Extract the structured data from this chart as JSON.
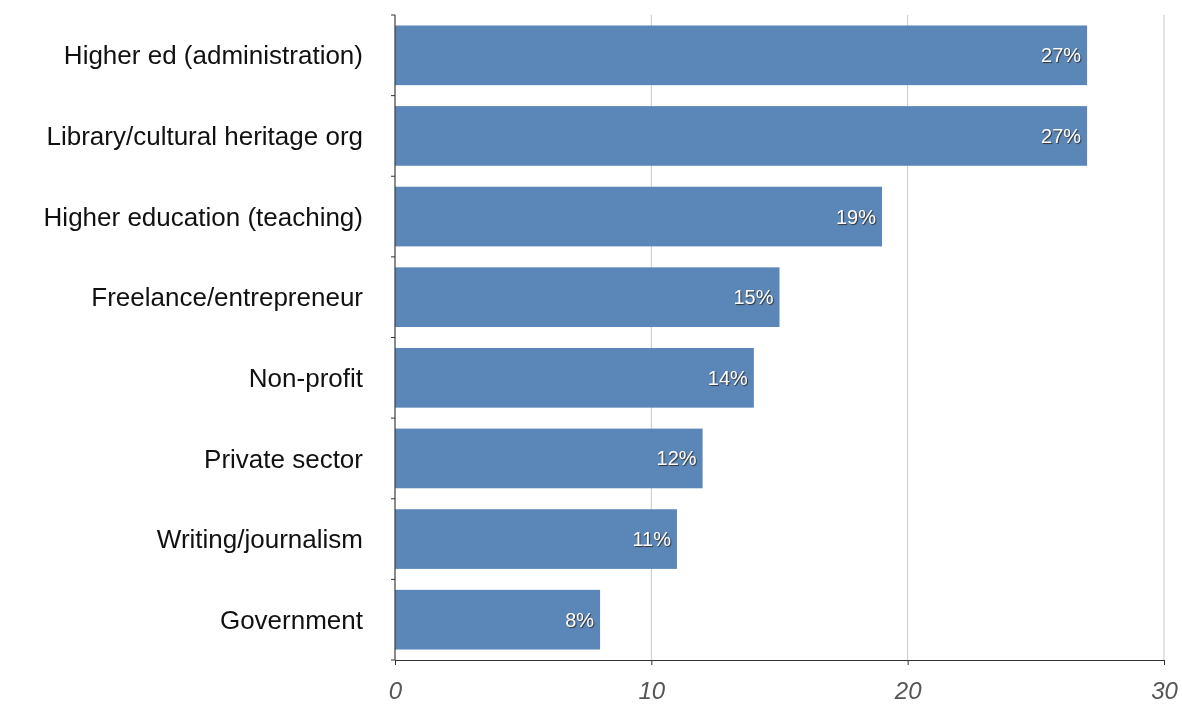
{
  "chart_data": {
    "type": "bar",
    "orientation": "horizontal",
    "categories": [
      "Higher ed (administration)",
      "Library/cultural heritage org",
      "Higher education (teaching)",
      "Freelance/entrepreneur",
      "Non-profit",
      "Private sector",
      "Writing/journalism",
      "Government"
    ],
    "values": [
      27,
      27,
      19,
      15,
      14,
      12,
      11,
      8
    ],
    "value_labels": [
      "27%",
      "27%",
      "19%",
      "15%",
      "14%",
      "12%",
      "11%",
      "8%"
    ],
    "color": "#5b87b8",
    "xlim": [
      0,
      30
    ],
    "xticks": [
      0,
      10,
      20,
      30
    ],
    "grid": "x"
  }
}
